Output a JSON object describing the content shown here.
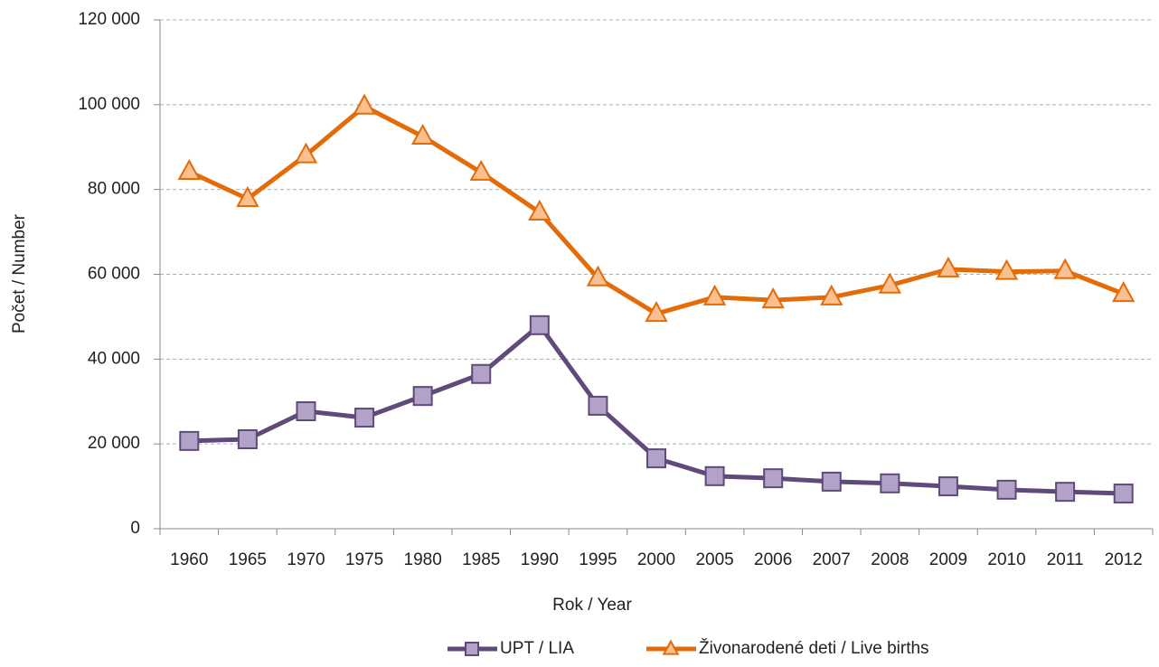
{
  "chart_data": {
    "type": "line",
    "xlabel": "Rok / Year",
    "ylabel": "Počet / Number",
    "categories": [
      "1960",
      "1965",
      "1970",
      "1975",
      "1980",
      "1985",
      "1990",
      "1995",
      "2000",
      "2005",
      "2006",
      "2007",
      "2008",
      "2009",
      "2010",
      "2011",
      "2012"
    ],
    "series": [
      {
        "name": "UPT / LIA",
        "color": "#604a7b",
        "marker_color": "#b3a2c7",
        "marker": "square",
        "values": [
          20700,
          21100,
          27700,
          26200,
          31300,
          36500,
          48000,
          29000,
          16600,
          12400,
          11900,
          11100,
          10700,
          10000,
          9200,
          8700,
          8300
        ]
      },
      {
        "name": "Živonarodené deti / Live births",
        "color": "#e36c09",
        "marker_color": "#fac090",
        "marker": "triangle",
        "values": [
          84200,
          77800,
          88100,
          99600,
          92500,
          84000,
          74600,
          59100,
          50700,
          54600,
          53900,
          54600,
          57400,
          61200,
          60600,
          60800,
          55400
        ]
      }
    ],
    "ylim": [
      0,
      120000
    ],
    "yticks": [
      0,
      {
        "value": 20000,
        "label": "20 000"
      },
      {
        "value": 40000,
        "label": "40 000"
      },
      {
        "value": 60000,
        "label": "60 000"
      },
      {
        "value": 80000,
        "label": "80 000"
      },
      {
        "value": 100000,
        "label": "100 000"
      },
      {
        "value": 120000,
        "label": "120 000"
      }
    ],
    "grid": true,
    "legend": "bottom"
  }
}
